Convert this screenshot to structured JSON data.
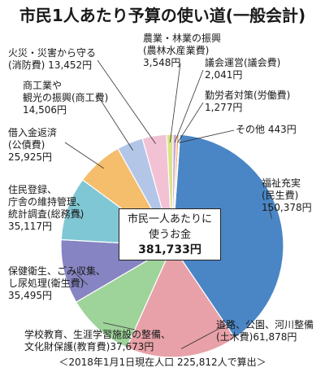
{
  "title": "市民1人あたり予算の使い道(一般会計)",
  "center": {
    "line1": "市民一人あたりに",
    "line2": "使うお金",
    "amount": "381,733円"
  },
  "footnote": "＜2018年1月1日現在人口 225,812人で算出＞",
  "chart_data": {
    "type": "pie",
    "title": "市民1人あたり予算の使い道(一般会計)",
    "total": 381733,
    "unit": "円",
    "slices": [
      {
        "name": "福祉充実(民生費)",
        "lines": [
          "福祉充実",
          "(民生費)",
          "150,378円"
        ],
        "value": 150378,
        "color": "#4a86c5"
      },
      {
        "name": "道路、公園、河川整備(土木費)",
        "lines": [
          "道路、公園、河川整備",
          "(土木費)61,878円"
        ],
        "value": 61878,
        "color": "#e8a1a8"
      },
      {
        "name": "学校教育、生涯学習施設の整備、文化財保護(教育費)",
        "lines": [
          "学校教育、生涯学習施設の整備、",
          "文化財保護(教育費)37,673円"
        ],
        "value": 37673,
        "color": "#9ed39a"
      },
      {
        "name": "保健衛生、ごみ収集、し尿処理(衛生費)",
        "lines": [
          "保健衛生、ごみ収集、",
          "し尿処理(衛生費)",
          "35,495円"
        ],
        "value": 35495,
        "color": "#8684c2"
      },
      {
        "name": "住民登録、庁舎の維持管理、統計調査(総務費)",
        "lines": [
          "住民登録、",
          "庁舎の維持管理、",
          "統計調査(総務費)",
          "35,117円"
        ],
        "value": 35117,
        "color": "#7fc7d4"
      },
      {
        "name": "借入金返済(公債費)",
        "lines": [
          "借入金返済",
          "(公債費)",
          "25,925円"
        ],
        "value": 25925,
        "color": "#f4be6c"
      },
      {
        "name": "商工業や観光の振興(商工費)",
        "lines": [
          "商工業や",
          "観光の振興(商工費)",
          "14,506円"
        ],
        "value": 14506,
        "color": "#b3c6e8"
      },
      {
        "name": "火災・災害から守る(消防費)",
        "lines": [
          "火災・災害から守る",
          "(消防費) 13,452円"
        ],
        "value": 13452,
        "color": "#f2c2d4"
      },
      {
        "name": "農業・林業の振興(農林水産業費)",
        "lines": [
          "農業・林業の振興",
          "(農林水産業費)",
          "3,548円"
        ],
        "value": 3548,
        "color": "#d8e48a"
      },
      {
        "name": "議会運営(議会費)",
        "lines": [
          "議会運営(議会費)",
          "2,041円"
        ],
        "value": 2041,
        "color": "#c9a7d4"
      },
      {
        "name": "勤労者対策(労働費)",
        "lines": [
          "勤労者対策(労働費)",
          "1,277円"
        ],
        "value": 1277,
        "color": "#f0a65c"
      },
      {
        "name": "その他",
        "lines": [
          "その他 443円"
        ],
        "value": 443,
        "color": "#9a9a9a"
      }
    ]
  }
}
